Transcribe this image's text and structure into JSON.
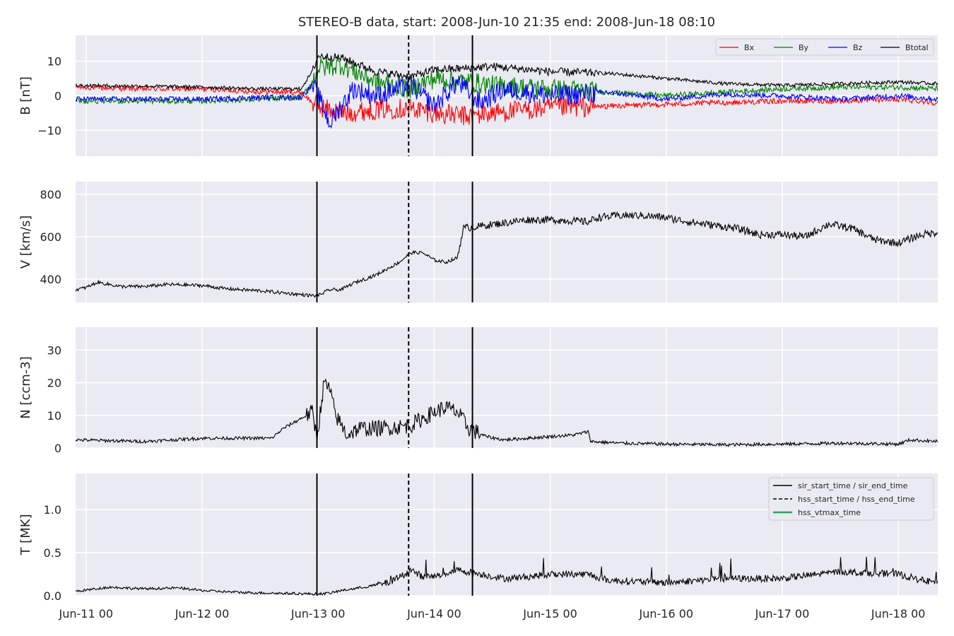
{
  "chart_data": {
    "type": "line",
    "title": "STEREO-B data, start: 2008-Jun-10 21:35  end: 2008-Jun-18 08:10",
    "x_axis": {
      "unit": "days since 2008-Jun-11 00:00",
      "range": [
        -0.09,
        7.34
      ],
      "tick_values": [
        0,
        1,
        2,
        3,
        4,
        5,
        6,
        7
      ],
      "tick_labels": [
        "Jun-11 00",
        "Jun-12 00",
        "Jun-13 00",
        "Jun-14 00",
        "Jun-15 00",
        "Jun-16 00",
        "Jun-17 00",
        "Jun-18 00"
      ]
    },
    "grid": true,
    "event_lines": [
      {
        "name": "sir_start_time",
        "x": 1.99,
        "style": "solid"
      },
      {
        "name": "hss_start_time",
        "x": 2.78,
        "style": "dashed"
      },
      {
        "name": "sir_end_time",
        "x": 3.33,
        "style": "solid"
      }
    ],
    "panels": [
      {
        "ylabel": "B [nT]",
        "ylim": [
          -17.5,
          17.5
        ],
        "yticks": [
          -10,
          0,
          10
        ],
        "ytick_labels": [
          "−10",
          "0",
          "10"
        ],
        "legend": {
          "placement": "top-right",
          "ncol": 4
        },
        "series": [
          {
            "name": "Bx",
            "color": "#ff0000",
            "points": [
              [
                -0.09,
                2.5
              ],
              [
                0.5,
                2.0
              ],
              [
                1.0,
                2.0
              ],
              [
                1.5,
                1.2
              ],
              [
                1.85,
                1.0
              ],
              [
                1.95,
                -2.0
              ],
              [
                2.0,
                -3.0
              ],
              [
                2.2,
                -5.0
              ],
              [
                2.5,
                -4.0
              ],
              [
                2.8,
                -3.5
              ],
              [
                3.0,
                -5.0
              ],
              [
                3.3,
                -6.0
              ],
              [
                3.5,
                -5.0
              ],
              [
                4.0,
                -3.5
              ],
              [
                4.5,
                -3.0
              ],
              [
                5.0,
                -2.5
              ],
              [
                5.5,
                -2.0
              ],
              [
                6.0,
                -1.5
              ],
              [
                6.5,
                -1.5
              ],
              [
                7.0,
                -1.0
              ],
              [
                7.34,
                -2.0
              ]
            ]
          },
          {
            "name": "By",
            "color": "#008000",
            "points": [
              [
                -0.09,
                -1.5
              ],
              [
                0.5,
                -1.5
              ],
              [
                1.0,
                -1.5
              ],
              [
                1.5,
                -1.0
              ],
              [
                1.85,
                -0.5
              ],
              [
                1.95,
                4.0
              ],
              [
                2.0,
                8.0
              ],
              [
                2.2,
                9.0
              ],
              [
                2.5,
                4.0
              ],
              [
                2.8,
                2.0
              ],
              [
                3.0,
                5.0
              ],
              [
                3.3,
                4.0
              ],
              [
                3.5,
                3.0
              ],
              [
                4.0,
                2.0
              ],
              [
                4.5,
                1.0
              ],
              [
                5.0,
                0.0
              ],
              [
                5.5,
                1.0
              ],
              [
                6.0,
                2.0
              ],
              [
                6.5,
                2.5
              ],
              [
                7.0,
                2.5
              ],
              [
                7.34,
                2.0
              ]
            ]
          },
          {
            "name": "Bz",
            "color": "#0000ff",
            "points": [
              [
                -0.09,
                -1.0
              ],
              [
                0.5,
                -1.0
              ],
              [
                1.0,
                -1.0
              ],
              [
                1.5,
                -0.5
              ],
              [
                1.85,
                -0.5
              ],
              [
                1.95,
                3.0
              ],
              [
                2.0,
                0.0
              ],
              [
                2.1,
                -8.0
              ],
              [
                2.3,
                2.0
              ],
              [
                2.5,
                0.0
              ],
              [
                2.8,
                3.0
              ],
              [
                3.0,
                -3.0
              ],
              [
                3.2,
                4.0
              ],
              [
                3.4,
                -2.0
              ],
              [
                3.6,
                2.0
              ],
              [
                4.0,
                0.0
              ],
              [
                4.5,
                1.0
              ],
              [
                5.0,
                -1.0
              ],
              [
                5.5,
                0.5
              ],
              [
                6.0,
                0.0
              ],
              [
                6.5,
                -1.0
              ],
              [
                7.0,
                0.0
              ],
              [
                7.34,
                -1.0
              ]
            ]
          },
          {
            "name": "Btotal",
            "color": "#000000",
            "points": [
              [
                -0.09,
                3.0
              ],
              [
                0.5,
                2.8
              ],
              [
                1.0,
                2.5
              ],
              [
                1.5,
                2.0
              ],
              [
                1.85,
                2.0
              ],
              [
                1.95,
                7.0
              ],
              [
                2.0,
                11.5
              ],
              [
                2.2,
                11.0
              ],
              [
                2.5,
                7.0
              ],
              [
                2.8,
                5.5
              ],
              [
                3.0,
                7.5
              ],
              [
                3.3,
                8.0
              ],
              [
                3.5,
                8.5
              ],
              [
                4.0,
                7.0
              ],
              [
                4.5,
                6.5
              ],
              [
                5.0,
                5.0
              ],
              [
                5.5,
                3.5
              ],
              [
                6.0,
                3.0
              ],
              [
                6.5,
                3.5
              ],
              [
                7.0,
                4.0
              ],
              [
                7.34,
                3.5
              ]
            ]
          }
        ]
      },
      {
        "ylabel": "V [km/s]",
        "ylim": [
          290,
          860
        ],
        "yticks": [
          400,
          600,
          800
        ],
        "ytick_labels": [
          "400",
          "600",
          "800"
        ],
        "series": [
          {
            "name": "V",
            "color": "#000000",
            "points": [
              [
                -0.09,
                350
              ],
              [
                0.0,
                360
              ],
              [
                0.1,
                385
              ],
              [
                0.3,
                365
              ],
              [
                0.5,
                365
              ],
              [
                0.7,
                375
              ],
              [
                1.0,
                370
              ],
              [
                1.2,
                355
              ],
              [
                1.5,
                345
              ],
              [
                1.8,
                330
              ],
              [
                1.99,
                320
              ],
              [
                2.1,
                350
              ],
              [
                2.2,
                350
              ],
              [
                2.3,
                380
              ],
              [
                2.5,
                420
              ],
              [
                2.7,
                480
              ],
              [
                2.8,
                525
              ],
              [
                2.9,
                525
              ],
              [
                3.0,
                490
              ],
              [
                3.1,
                480
              ],
              [
                3.2,
                500
              ],
              [
                3.25,
                640
              ],
              [
                3.4,
                650
              ],
              [
                3.6,
                665
              ],
              [
                3.8,
                680
              ],
              [
                4.0,
                680
              ],
              [
                4.2,
                675
              ],
              [
                4.33,
                670
              ],
              [
                4.4,
                690
              ],
              [
                4.6,
                700
              ],
              [
                4.8,
                700
              ],
              [
                5.0,
                690
              ],
              [
                5.2,
                670
              ],
              [
                5.4,
                655
              ],
              [
                5.6,
                640
              ],
              [
                5.8,
                610
              ],
              [
                6.0,
                610
              ],
              [
                6.2,
                600
              ],
              [
                6.4,
                660
              ],
              [
                6.6,
                640
              ],
              [
                6.8,
                585
              ],
              [
                7.0,
                570
              ],
              [
                7.2,
                610
              ],
              [
                7.34,
                620
              ]
            ]
          }
        ]
      },
      {
        "ylabel": "N [ccm-3]",
        "ylim": [
          0,
          37
        ],
        "yticks": [
          0,
          10,
          20,
          30
        ],
        "ytick_labels": [
          "0",
          "10",
          "20",
          "30"
        ],
        "series": [
          {
            "name": "N",
            "color": "#000000",
            "points": [
              [
                -0.09,
                2.5
              ],
              [
                0.5,
                2.0
              ],
              [
                1.0,
                3.0
              ],
              [
                1.5,
                3.0
              ],
              [
                1.6,
                3.0
              ],
              [
                1.7,
                6.0
              ],
              [
                1.85,
                9.0
              ],
              [
                1.95,
                11.0
              ],
              [
                1.99,
                3.0
              ],
              [
                2.05,
                20.0
              ],
              [
                2.1,
                18.0
              ],
              [
                2.15,
                10.0
              ],
              [
                2.25,
                4.0
              ],
              [
                2.35,
                6.0
              ],
              [
                2.5,
                6.0
              ],
              [
                2.7,
                6.5
              ],
              [
                2.8,
                7.0
              ],
              [
                2.9,
                9.0
              ],
              [
                3.0,
                11.0
              ],
              [
                3.1,
                12.5
              ],
              [
                3.2,
                11.0
              ],
              [
                3.3,
                6.0
              ],
              [
                3.45,
                3.5
              ],
              [
                3.6,
                2.5
              ],
              [
                3.8,
                3.0
              ],
              [
                4.0,
                3.5
              ],
              [
                4.2,
                4.0
              ],
              [
                4.33,
                5.0
              ],
              [
                4.35,
                2.0
              ],
              [
                4.6,
                1.5
              ],
              [
                5.0,
                1.2
              ],
              [
                5.5,
                1.0
              ],
              [
                6.0,
                1.2
              ],
              [
                6.5,
                1.5
              ],
              [
                7.0,
                1.2
              ],
              [
                7.1,
                2.5
              ],
              [
                7.34,
                2.0
              ]
            ]
          }
        ]
      },
      {
        "ylabel": "T [MK]",
        "ylim": [
          0,
          1.42
        ],
        "yticks": [
          0.0,
          0.5,
          1.0
        ],
        "ytick_labels": [
          "0.0",
          "0.5",
          "1.0"
        ],
        "legend": {
          "placement": "top-right",
          "entries": [
            {
              "label": "sir_start_time / sir_end_time",
              "color": "#000000",
              "style": "solid"
            },
            {
              "label": "hss_start_time / hss_end_time",
              "color": "#000000",
              "style": "dashed"
            },
            {
              "label": "hss_vtmax_time",
              "color": "#2ca25f",
              "style": "solid"
            }
          ]
        },
        "series": [
          {
            "name": "T",
            "color": "#000000",
            "points": [
              [
                -0.09,
                0.05
              ],
              [
                0.2,
                0.1
              ],
              [
                0.5,
                0.08
              ],
              [
                0.8,
                0.09
              ],
              [
                1.0,
                0.06
              ],
              [
                1.3,
                0.04
              ],
              [
                1.6,
                0.03
              ],
              [
                1.99,
                0.02
              ],
              [
                2.1,
                0.03
              ],
              [
                2.2,
                0.06
              ],
              [
                2.4,
                0.1
              ],
              [
                2.6,
                0.15
              ],
              [
                2.75,
                0.25
              ],
              [
                2.8,
                0.3
              ],
              [
                2.9,
                0.22
              ],
              [
                3.0,
                0.22
              ],
              [
                3.2,
                0.3
              ],
              [
                3.4,
                0.25
              ],
              [
                3.6,
                0.2
              ],
              [
                3.8,
                0.22
              ],
              [
                4.0,
                0.25
              ],
              [
                4.33,
                0.25
              ],
              [
                4.5,
                0.18
              ],
              [
                5.0,
                0.15
              ],
              [
                5.5,
                0.2
              ],
              [
                6.0,
                0.2
              ],
              [
                6.5,
                0.28
              ],
              [
                7.0,
                0.25
              ],
              [
                7.2,
                0.18
              ],
              [
                7.34,
                0.15
              ]
            ]
          }
        ]
      }
    ]
  }
}
